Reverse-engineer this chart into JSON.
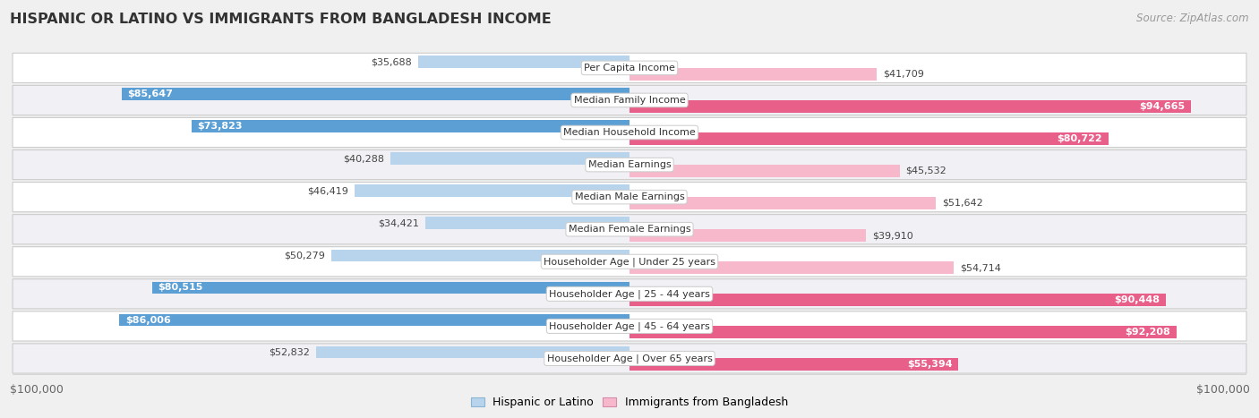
{
  "title": "HISPANIC OR LATINO VS IMMIGRANTS FROM BANGLADESH INCOME",
  "source": "Source: ZipAtlas.com",
  "categories": [
    "Per Capita Income",
    "Median Family Income",
    "Median Household Income",
    "Median Earnings",
    "Median Male Earnings",
    "Median Female Earnings",
    "Householder Age | Under 25 years",
    "Householder Age | 25 - 44 years",
    "Householder Age | 45 - 64 years",
    "Householder Age | Over 65 years"
  ],
  "hispanic_values": [
    35688,
    85647,
    73823,
    40288,
    46419,
    34421,
    50279,
    80515,
    86006,
    52832
  ],
  "bangladesh_values": [
    41709,
    94665,
    80722,
    45532,
    51642,
    39910,
    54714,
    90448,
    92208,
    55394
  ],
  "hispanic_labels": [
    "$35,688",
    "$85,647",
    "$73,823",
    "$40,288",
    "$46,419",
    "$34,421",
    "$50,279",
    "$80,515",
    "$86,006",
    "$52,832"
  ],
  "bangladesh_labels": [
    "$41,709",
    "$94,665",
    "$80,722",
    "$45,532",
    "$51,642",
    "$39,910",
    "$54,714",
    "$90,448",
    "$92,208",
    "$55,394"
  ],
  "max_value": 100000,
  "hispanic_light": "#b8d4ec",
  "hispanic_dark": "#5b9fd4",
  "bangladesh_light": "#f7b8cc",
  "bangladesh_dark": "#e8608a",
  "bg_color": "#f0f0f0",
  "row_even": "#ffffff",
  "row_odd": "#f0f0f5",
  "label_threshold": 55000,
  "legend_hispanic": "Hispanic or Latino",
  "legend_bangladesh": "Immigrants from Bangladesh"
}
